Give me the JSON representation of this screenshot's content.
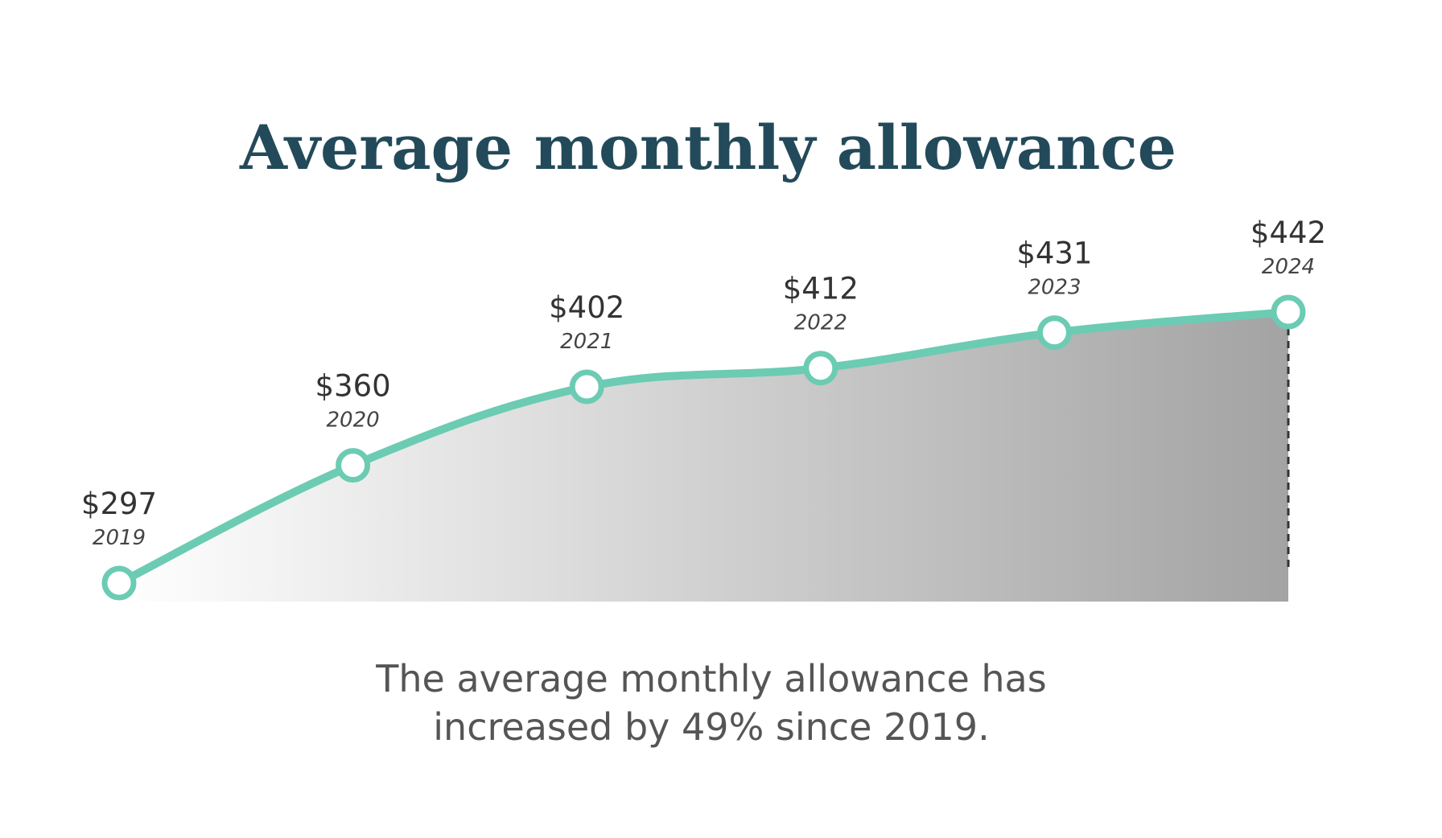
{
  "chart_data": {
    "type": "area-line",
    "title": "Average monthly allowance",
    "categories": [
      "2019",
      "2020",
      "2021",
      "2022",
      "2023",
      "2024"
    ],
    "values": [
      297,
      360,
      402,
      412,
      431,
      442
    ],
    "value_labels": [
      "$297",
      "$360",
      "$402",
      "$412",
      "$431",
      "$442"
    ],
    "color": "#6ccbb3",
    "caption": [
      "The average monthly allowance has",
      "increased by 49% since 2019."
    ]
  }
}
